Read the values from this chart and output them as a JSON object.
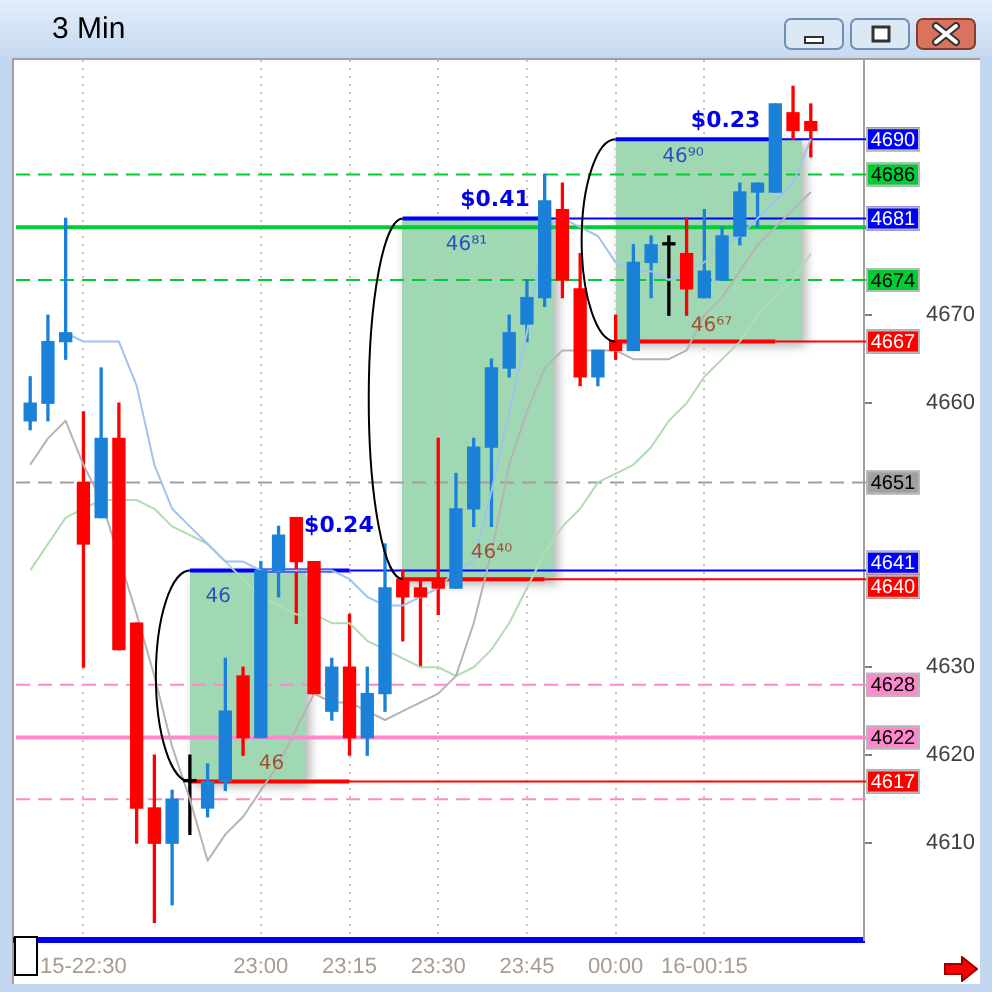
{
  "chart_data": {
    "type": "candlestick",
    "title": "3 Min",
    "x": [
      22.35,
      22.4,
      22.45,
      22.5,
      22.55,
      22.6,
      22.65,
      22.7,
      22.75,
      22.8,
      22.85,
      22.9,
      22.95,
      23,
      23.05,
      23.1,
      23.15,
      23.2,
      23.25,
      23.3,
      23.35,
      23.4,
      23.45,
      23.5,
      23.55,
      23.6,
      23.65,
      23.7,
      23.75,
      23.8,
      23.85,
      23.9,
      23.95,
      24,
      24.05,
      24.1,
      24.15,
      24.2,
      24.25,
      24.3,
      24.35,
      24.4,
      24.45,
      24.5,
      24.55
    ],
    "ohlc": [
      [
        4658,
        4663,
        4657,
        4660
      ],
      [
        4660,
        4670,
        4658,
        4667
      ],
      [
        4667,
        4681,
        4665,
        4668
      ],
      [
        4651,
        4659,
        4630,
        4644
      ],
      [
        4647,
        4664,
        4647,
        4656
      ],
      [
        4656,
        4660,
        4632,
        4632
      ],
      [
        4635,
        4635,
        4610,
        4614
      ],
      [
        4614,
        4620,
        4601,
        4610
      ],
      [
        4610,
        4616,
        4603,
        4615
      ],
      [
        4617,
        4620,
        4611,
        4617
      ],
      [
        4614,
        4619,
        4613,
        4617
      ],
      [
        4617,
        4631,
        4616,
        4625
      ],
      [
        4629,
        4630,
        4620,
        4622
      ],
      [
        4622,
        4642,
        4622,
        4641
      ],
      [
        4641,
        4646,
        4638,
        4645
      ],
      [
        4647,
        4647,
        4635,
        4642
      ],
      [
        4642,
        4642,
        4627,
        4627
      ],
      [
        4625,
        4631,
        4624,
        4630
      ],
      [
        4630,
        4636,
        4620,
        4622
      ],
      [
        4622,
        4630,
        4620,
        4627
      ],
      [
        4627,
        4644,
        4625,
        4639
      ],
      [
        4640,
        4641,
        4633,
        4638
      ],
      [
        4639,
        4640,
        4630,
        4638
      ],
      [
        4640,
        4656,
        4636,
        4639
      ],
      [
        4639,
        4652,
        4639,
        4648
      ],
      [
        4648,
        4656,
        4646,
        4655
      ],
      [
        4655,
        4665,
        4646,
        4664
      ],
      [
        4664,
        4670,
        4663,
        4668
      ],
      [
        4669,
        4674,
        4667,
        4672
      ],
      [
        4672,
        4686,
        4671,
        4683
      ],
      [
        4682,
        4685,
        4672,
        4674
      ],
      [
        4673,
        4677,
        4662,
        4663
      ],
      [
        4663,
        4666,
        4662,
        4666
      ],
      [
        4667,
        4670,
        4665,
        4666
      ],
      [
        4666,
        4678,
        4666,
        4676
      ],
      [
        4676,
        4679,
        4672,
        4678
      ],
      [
        4678,
        4679,
        4670,
        4678
      ],
      [
        4677,
        4681,
        4670,
        4673
      ],
      [
        4672,
        4682,
        4672,
        4675
      ],
      [
        4674,
        4680,
        4674,
        4679
      ],
      [
        4679,
        4685,
        4678,
        4684
      ],
      [
        4684,
        4685,
        4680,
        4685
      ],
      [
        4684,
        4694,
        4684,
        4694
      ],
      [
        4693,
        4696,
        4690,
        4691
      ],
      [
        4692,
        4694,
        4688,
        4691
      ]
    ],
    "colors": [
      "#1a80d8",
      "#1a80d8",
      "#1a80d8",
      "#ff0000",
      "#1a80d8",
      "#ff0000",
      "#ff0000",
      "#ff0000",
      "#1a80d8",
      "#000000",
      "#1a80d8",
      "#1a80d8",
      "#ff0000",
      "#1a80d8",
      "#1a80d8",
      "#ff0000",
      "#ff0000",
      "#1a80d8",
      "#ff0000",
      "#1a80d8",
      "#1a80d8",
      "#ff0000",
      "#ff0000",
      "#ff0000",
      "#1a80d8",
      "#1a80d8",
      "#1a80d8",
      "#1a80d8",
      "#1a80d8",
      "#1a80d8",
      "#ff0000",
      "#ff0000",
      "#1a80d8",
      "#ff0000",
      "#1a80d8",
      "#1a80d8",
      "#000000",
      "#ff0000",
      "#1a80d8",
      "#1a80d8",
      "#1a80d8",
      "#1a80d8",
      "#1a80d8",
      "#ff0000",
      "#ff0000"
    ],
    "series": [
      {
        "type": "line",
        "color": "#9ec4ee",
        "x": [
          22.45,
          22.5,
          22.55,
          22.6,
          22.65,
          22.7,
          22.75,
          22.8,
          22.85,
          22.9,
          22.95,
          23,
          23.05,
          23.1,
          23.15,
          23.2,
          23.25,
          23.3,
          23.35,
          23.4,
          23.45,
          23.5,
          23.55,
          23.6,
          23.65,
          23.7,
          23.75,
          23.8,
          23.85,
          23.9,
          23.95,
          24,
          24.05,
          24.1,
          24.15,
          24.2,
          24.25,
          24.3,
          24.35,
          24.4,
          24.45,
          24.5,
          24.55
        ],
        "values": [
          4668,
          4667,
          4667,
          4667,
          4662,
          4653,
          4648,
          4646,
          4644,
          4642,
          4642,
          4641,
          4641,
          4641,
          4641,
          4641,
          4640,
          4638,
          4637,
          4637,
          4638,
          4639,
          4641,
          4642,
          4650,
          4659,
          4668,
          4680,
          4681,
          4680,
          4679,
          4676,
          4675,
          4675,
          4674,
          4675,
          4676,
          4678,
          4679,
          4681,
          4683,
          4685,
          4690
        ]
      },
      {
        "type": "line",
        "color": "#b4b4b4",
        "x": [
          22.35,
          22.4,
          22.45,
          22.5,
          22.55,
          22.6,
          22.65,
          22.7,
          22.75,
          22.8,
          22.85,
          22.9,
          22.95,
          23,
          23.05,
          23.1,
          23.15,
          23.2,
          23.25,
          23.3,
          23.35,
          23.4,
          23.45,
          23.5,
          23.55,
          23.6,
          23.65,
          23.7,
          23.75,
          23.8,
          23.85,
          23.9,
          23.95,
          24,
          24.05,
          24.1,
          24.15,
          24.2,
          24.25,
          24.3,
          24.35,
          24.4,
          24.45,
          24.5,
          24.55
        ],
        "values": [
          4653,
          4656,
          4658,
          4653,
          4649,
          null,
          4636,
          4629,
          4621,
          4615,
          4608,
          4611,
          4613,
          4616,
          4619,
          4623,
          4627,
          4626,
          4626,
          4625,
          4624,
          4625,
          4626,
          4627,
          4629,
          4635,
          4643,
          4653,
          4659,
          4664,
          4666,
          4666,
          4666,
          4666,
          4665,
          4665,
          4665,
          4666,
          4670,
          4672,
          4675,
          4678,
          4680,
          4682,
          4684
        ]
      },
      {
        "type": "line",
        "color": "#b2dcb2",
        "x": [
          22.35,
          22.4,
          22.45,
          22.5,
          22.55,
          22.6,
          22.65,
          22.7,
          22.75,
          22.8,
          22.85,
          22.9,
          22.95,
          23,
          23.05,
          23.1,
          23.15,
          23.2,
          23.25,
          23.3,
          23.35,
          23.4,
          23.45,
          23.5,
          23.55,
          23.6,
          23.65,
          23.7,
          23.75,
          23.8,
          23.85,
          23.9,
          23.95,
          24,
          24.05,
          24.1,
          24.15,
          24.2,
          24.25,
          24.3,
          24.35,
          24.4,
          24.45,
          24.5,
          24.55
        ],
        "values": [
          4641,
          4644,
          4647,
          4648,
          4649,
          4649,
          4649,
          4648,
          4646,
          4645,
          4644,
          4642,
          4640,
          4638,
          4637,
          4636,
          4636,
          4635,
          4635,
          4633,
          4632,
          4631,
          4630,
          4630,
          4629,
          4630,
          4632,
          4635,
          4639,
          4643,
          4646,
          4648,
          4651,
          4652,
          4653,
          4655,
          4658,
          4660,
          4663,
          4665,
          4667,
          4670,
          4672,
          4674,
          4677
        ]
      }
    ],
    "xlim": [
      22.31,
      24.7
    ],
    "xticks": [
      {
        "value": 22.5,
        "label": "15-22:30"
      },
      {
        "value": 23,
        "label": "23:00"
      },
      {
        "value": 23.25,
        "label": "23:15"
      },
      {
        "value": 23.5,
        "label": "23:30"
      },
      {
        "value": 23.75,
        "label": "23:45"
      },
      {
        "value": 24,
        "label": "00:00"
      },
      {
        "value": 24.25,
        "label": "16-00:15"
      }
    ],
    "ylim": [
      4599,
      4699
    ],
    "yticks": [
      4610,
      4620,
      4630,
      4660,
      4670
    ],
    "ref_lines": [
      {
        "axis": "y",
        "value": 4690,
        "label": "4690",
        "color": "#0000ff",
        "line_style": "solid"
      },
      {
        "axis": "y",
        "value": 4686,
        "label": "4686",
        "color": "#00cc33",
        "line_style": "dashed"
      },
      {
        "axis": "y",
        "value": 4681,
        "label": "4681",
        "color": "#0000ff",
        "line_style": "solid"
      },
      {
        "axis": "y",
        "value": 4680,
        "label": null,
        "color": "#00cc33",
        "line_style": "solid"
      },
      {
        "axis": "y",
        "value": 4674,
        "label": "4674",
        "color": "#00cc33",
        "line_style": "dashed"
      },
      {
        "axis": "y",
        "value": 4667,
        "label": "4667",
        "color": "#ff0000",
        "line_style": "solid"
      },
      {
        "axis": "y",
        "value": 4651,
        "label": "4651",
        "color": "#a0a0a0",
        "line_style": "dashed"
      },
      {
        "axis": "y",
        "value": 4641,
        "label": "4641",
        "color": "#0000ff",
        "line_style": "solid"
      },
      {
        "axis": "y",
        "value": 4640,
        "label": "4640",
        "color": "#ff0000",
        "line_style": "solid"
      },
      {
        "axis": "y",
        "value": 4628,
        "label": "4628",
        "color": "#ff88cc",
        "line_style": "dashed"
      },
      {
        "axis": "y",
        "value": 4622,
        "label": "4622",
        "color": "#ff88cc",
        "line_style": "solid"
      },
      {
        "axis": "y",
        "value": 4617,
        "label": "4617",
        "color": "#ff0000",
        "line_style": "solid"
      },
      {
        "axis": "y",
        "value": 4615,
        "label": null,
        "color": "#ff88cc",
        "line_style": "dashed"
      }
    ],
    "annotations": [
      {
        "text": "$0.24",
        "x": 23.22,
        "y": 4641
      },
      {
        "text": "46",
        "x": 22.88,
        "y": 4641
      },
      {
        "text": "46",
        "x": 23.03,
        "y": 4617
      },
      {
        "text": "$0.41",
        "x": 23.66,
        "y": 4681
      },
      {
        "text": "46⁸¹",
        "x": 23.58,
        "y": 4681
      },
      {
        "text": "46⁴⁰",
        "x": 23.65,
        "y": 4640
      },
      {
        "text": "$0.23",
        "x": 24.31,
        "y": 4690
      },
      {
        "text": "46⁹⁰",
        "x": 24.19,
        "y": 4690
      },
      {
        "text": "46⁶⁷",
        "x": 24.27,
        "y": 4667
      }
    ],
    "grid": "x"
  }
}
